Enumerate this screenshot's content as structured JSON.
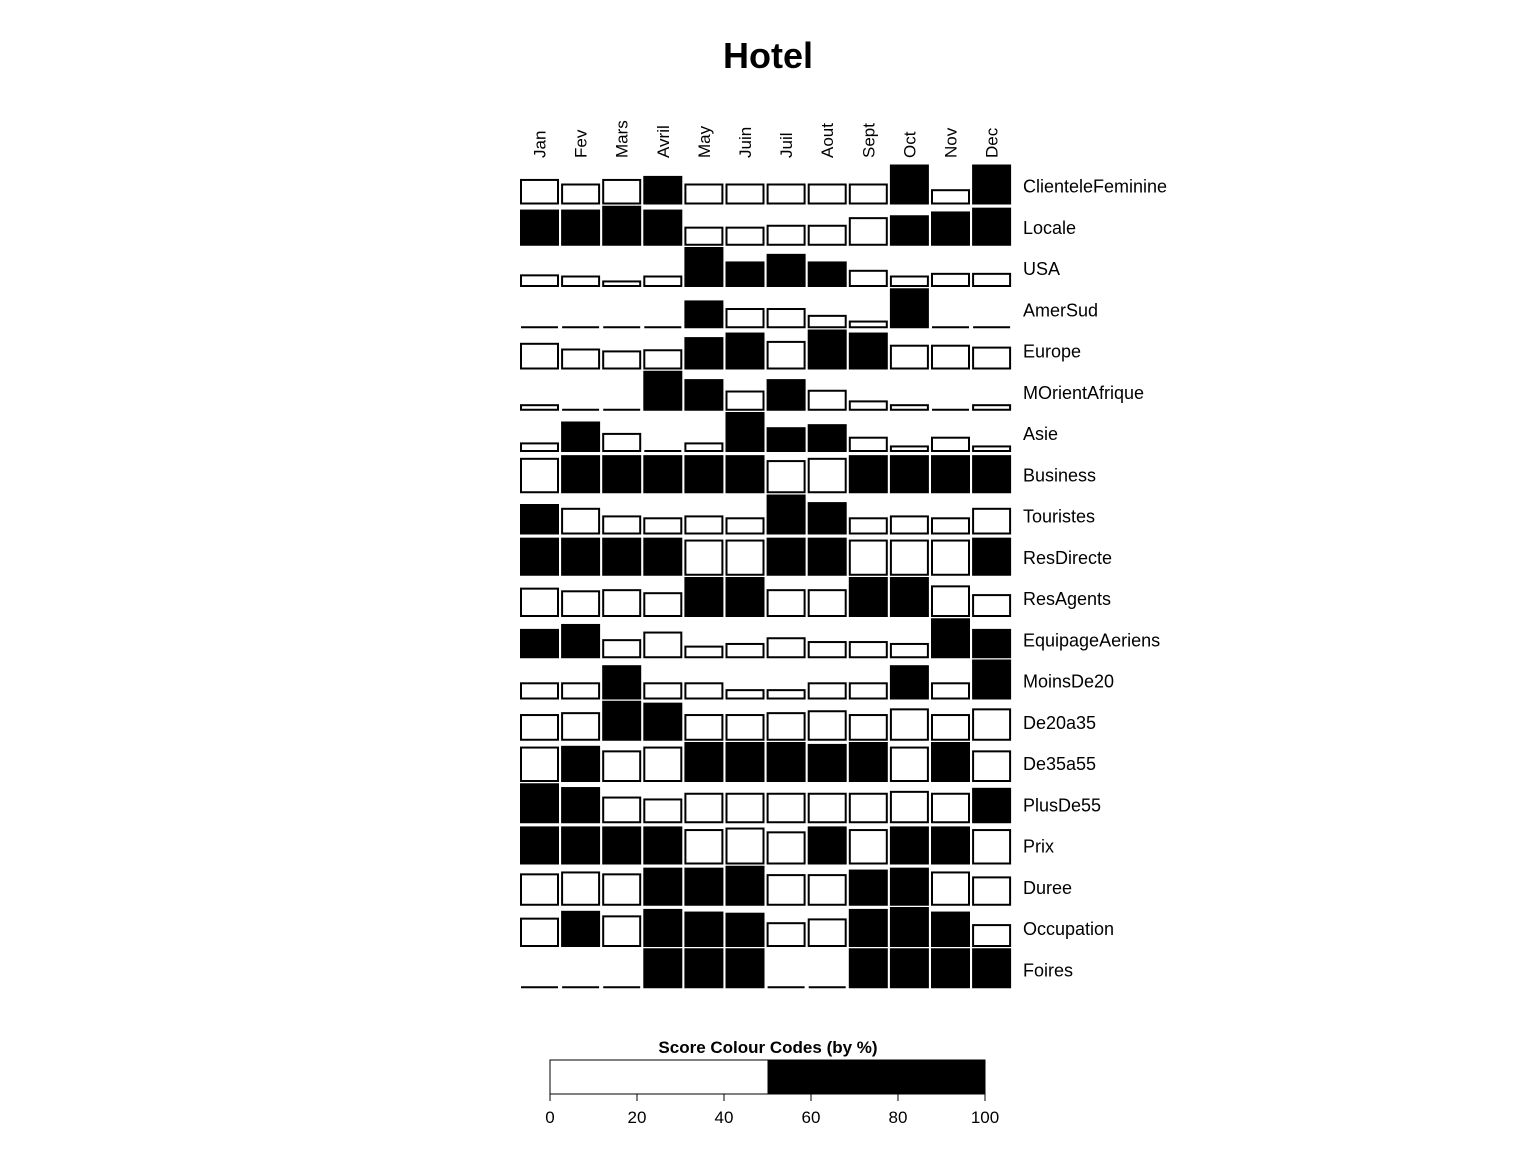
{
  "chart_data": {
    "type": "heatmap",
    "title": "Hotel",
    "columns": [
      "Jan",
      "Fev",
      "Mars",
      "Avril",
      "May",
      "Juin",
      "Juil",
      "Aout",
      "Sept",
      "Oct",
      "Nov",
      "Dec"
    ],
    "rows": [
      {
        "name": "ClienteleFeminine",
        "values": [
          0.62,
          0.5,
          0.62,
          0.7,
          0.5,
          0.5,
          0.5,
          0.5,
          0.5,
          1.0,
          0.35,
          1.0
        ]
      },
      {
        "name": "Locale",
        "values": [
          0.9,
          0.9,
          1.0,
          0.9,
          0.45,
          0.45,
          0.5,
          0.5,
          0.7,
          0.75,
          0.85,
          0.95
        ]
      },
      {
        "name": "USA",
        "values": [
          0.28,
          0.25,
          0.12,
          0.25,
          1.0,
          0.62,
          0.82,
          0.62,
          0.4,
          0.25,
          0.32,
          0.32
        ]
      },
      {
        "name": "AmerSud",
        "values": [
          0.0,
          0.0,
          0.0,
          0.0,
          0.68,
          0.48,
          0.48,
          0.3,
          0.15,
          1.0,
          0.0,
          0.0
        ]
      },
      {
        "name": "Europe",
        "values": [
          0.65,
          0.5,
          0.45,
          0.48,
          0.8,
          0.92,
          0.7,
          1.0,
          0.92,
          0.6,
          0.6,
          0.55
        ]
      },
      {
        "name": "MOrientAfrique",
        "values": [
          0.12,
          0.0,
          0.0,
          1.0,
          0.78,
          0.48,
          0.78,
          0.5,
          0.22,
          0.12,
          0.0,
          0.12
        ]
      },
      {
        "name": "Asie",
        "values": [
          0.2,
          0.75,
          0.45,
          0.0,
          0.2,
          1.0,
          0.6,
          0.68,
          0.35,
          0.12,
          0.35,
          0.12
        ]
      },
      {
        "name": "Business",
        "values": [
          0.88,
          0.95,
          0.95,
          0.95,
          0.95,
          0.95,
          0.82,
          0.88,
          0.95,
          0.95,
          0.95,
          0.95
        ]
      },
      {
        "name": "Touristes",
        "values": [
          0.75,
          0.65,
          0.45,
          0.4,
          0.45,
          0.4,
          1.0,
          0.8,
          0.4,
          0.45,
          0.4,
          0.65
        ]
      },
      {
        "name": "ResDirecte",
        "values": [
          0.95,
          0.95,
          0.95,
          0.95,
          0.9,
          0.9,
          0.95,
          0.95,
          0.9,
          0.9,
          0.9,
          0.95
        ]
      },
      {
        "name": "ResAgents",
        "values": [
          0.72,
          0.65,
          0.68,
          0.6,
          1.0,
          1.0,
          0.68,
          0.68,
          1.0,
          1.0,
          0.78,
          0.55
        ]
      },
      {
        "name": "EquipageAeriens",
        "values": [
          0.72,
          0.85,
          0.45,
          0.65,
          0.28,
          0.35,
          0.5,
          0.4,
          0.4,
          0.35,
          1.0,
          0.72
        ]
      },
      {
        "name": "MoinsDe20",
        "values": [
          0.4,
          0.4,
          0.85,
          0.4,
          0.4,
          0.22,
          0.22,
          0.4,
          0.4,
          0.85,
          0.4,
          1.0
        ]
      },
      {
        "name": "De20a35",
        "values": [
          0.65,
          0.7,
          1.0,
          0.95,
          0.65,
          0.65,
          0.7,
          0.75,
          0.65,
          0.8,
          0.65,
          0.8
        ]
      },
      {
        "name": "De35a55",
        "values": [
          0.88,
          0.9,
          0.78,
          0.88,
          1.0,
          1.0,
          1.0,
          0.95,
          1.0,
          0.88,
          1.0,
          0.78
        ]
      },
      {
        "name": "PlusDe55",
        "values": [
          1.0,
          0.9,
          0.65,
          0.6,
          0.75,
          0.75,
          0.75,
          0.75,
          0.75,
          0.8,
          0.75,
          0.88
        ]
      },
      {
        "name": "Prix",
        "values": [
          0.95,
          0.95,
          0.95,
          0.95,
          0.88,
          0.92,
          0.82,
          0.95,
          0.88,
          0.95,
          0.95,
          0.88
        ]
      },
      {
        "name": "Duree",
        "values": [
          0.8,
          0.85,
          0.8,
          0.95,
          0.95,
          1.0,
          0.78,
          0.78,
          0.9,
          0.95,
          0.85,
          0.72
        ]
      },
      {
        "name": "Occupation",
        "values": [
          0.72,
          0.9,
          0.78,
          0.95,
          0.88,
          0.85,
          0.6,
          0.7,
          0.95,
          1.0,
          0.88,
          0.55
        ]
      },
      {
        "name": "Foires",
        "values": [
          0.0,
          0.0,
          0.0,
          1.0,
          1.0,
          1.0,
          0.0,
          0.0,
          1.0,
          1.0,
          1.0,
          1.0
        ]
      }
    ],
    "filled": [
      [
        false,
        false,
        false,
        true,
        false,
        false,
        false,
        false,
        false,
        true,
        false,
        true
      ],
      [
        true,
        true,
        true,
        true,
        false,
        false,
        false,
        false,
        false,
        true,
        true,
        true
      ],
      [
        false,
        false,
        false,
        false,
        true,
        true,
        true,
        true,
        false,
        false,
        false,
        false
      ],
      [
        false,
        false,
        false,
        false,
        true,
        false,
        false,
        false,
        false,
        true,
        false,
        false
      ],
      [
        false,
        false,
        false,
        false,
        true,
        true,
        false,
        true,
        true,
        false,
        false,
        false
      ],
      [
        false,
        false,
        false,
        true,
        true,
        false,
        true,
        false,
        false,
        false,
        false,
        false
      ],
      [
        false,
        true,
        false,
        false,
        false,
        true,
        true,
        true,
        false,
        false,
        false,
        false
      ],
      [
        false,
        true,
        true,
        true,
        true,
        true,
        false,
        false,
        true,
        true,
        true,
        true
      ],
      [
        true,
        false,
        false,
        false,
        false,
        false,
        true,
        true,
        false,
        false,
        false,
        false
      ],
      [
        true,
        true,
        true,
        true,
        false,
        false,
        true,
        true,
        false,
        false,
        false,
        true
      ],
      [
        false,
        false,
        false,
        false,
        true,
        true,
        false,
        false,
        true,
        true,
        false,
        false
      ],
      [
        true,
        true,
        false,
        false,
        false,
        false,
        false,
        false,
        false,
        false,
        true,
        true
      ],
      [
        false,
        false,
        true,
        false,
        false,
        false,
        false,
        false,
        false,
        true,
        false,
        true
      ],
      [
        false,
        false,
        true,
        true,
        false,
        false,
        false,
        false,
        false,
        false,
        false,
        false
      ],
      [
        false,
        true,
        false,
        false,
        true,
        true,
        true,
        true,
        true,
        false,
        true,
        false
      ],
      [
        true,
        true,
        false,
        false,
        false,
        false,
        false,
        false,
        false,
        false,
        false,
        true
      ],
      [
        true,
        true,
        true,
        true,
        false,
        false,
        false,
        true,
        false,
        true,
        true,
        false
      ],
      [
        false,
        false,
        false,
        true,
        true,
        true,
        false,
        false,
        true,
        true,
        false,
        false
      ],
      [
        false,
        true,
        false,
        true,
        true,
        true,
        false,
        false,
        true,
        true,
        true,
        false
      ],
      [
        false,
        false,
        false,
        true,
        true,
        true,
        false,
        false,
        true,
        true,
        true,
        true
      ]
    ],
    "legend": {
      "title": "Score Colour Codes (by %)",
      "segments": [
        {
          "from": 0,
          "to": 50,
          "color": "#ffffff"
        },
        {
          "from": 50,
          "to": 100,
          "color": "#000000"
        }
      ],
      "ticks": [
        "0",
        "20",
        "40",
        "60",
        "80",
        "100"
      ],
      "range": [
        0,
        100
      ]
    },
    "colors": {
      "fill": "#000000",
      "empty": "#ffffff",
      "stroke": "#000000"
    }
  }
}
